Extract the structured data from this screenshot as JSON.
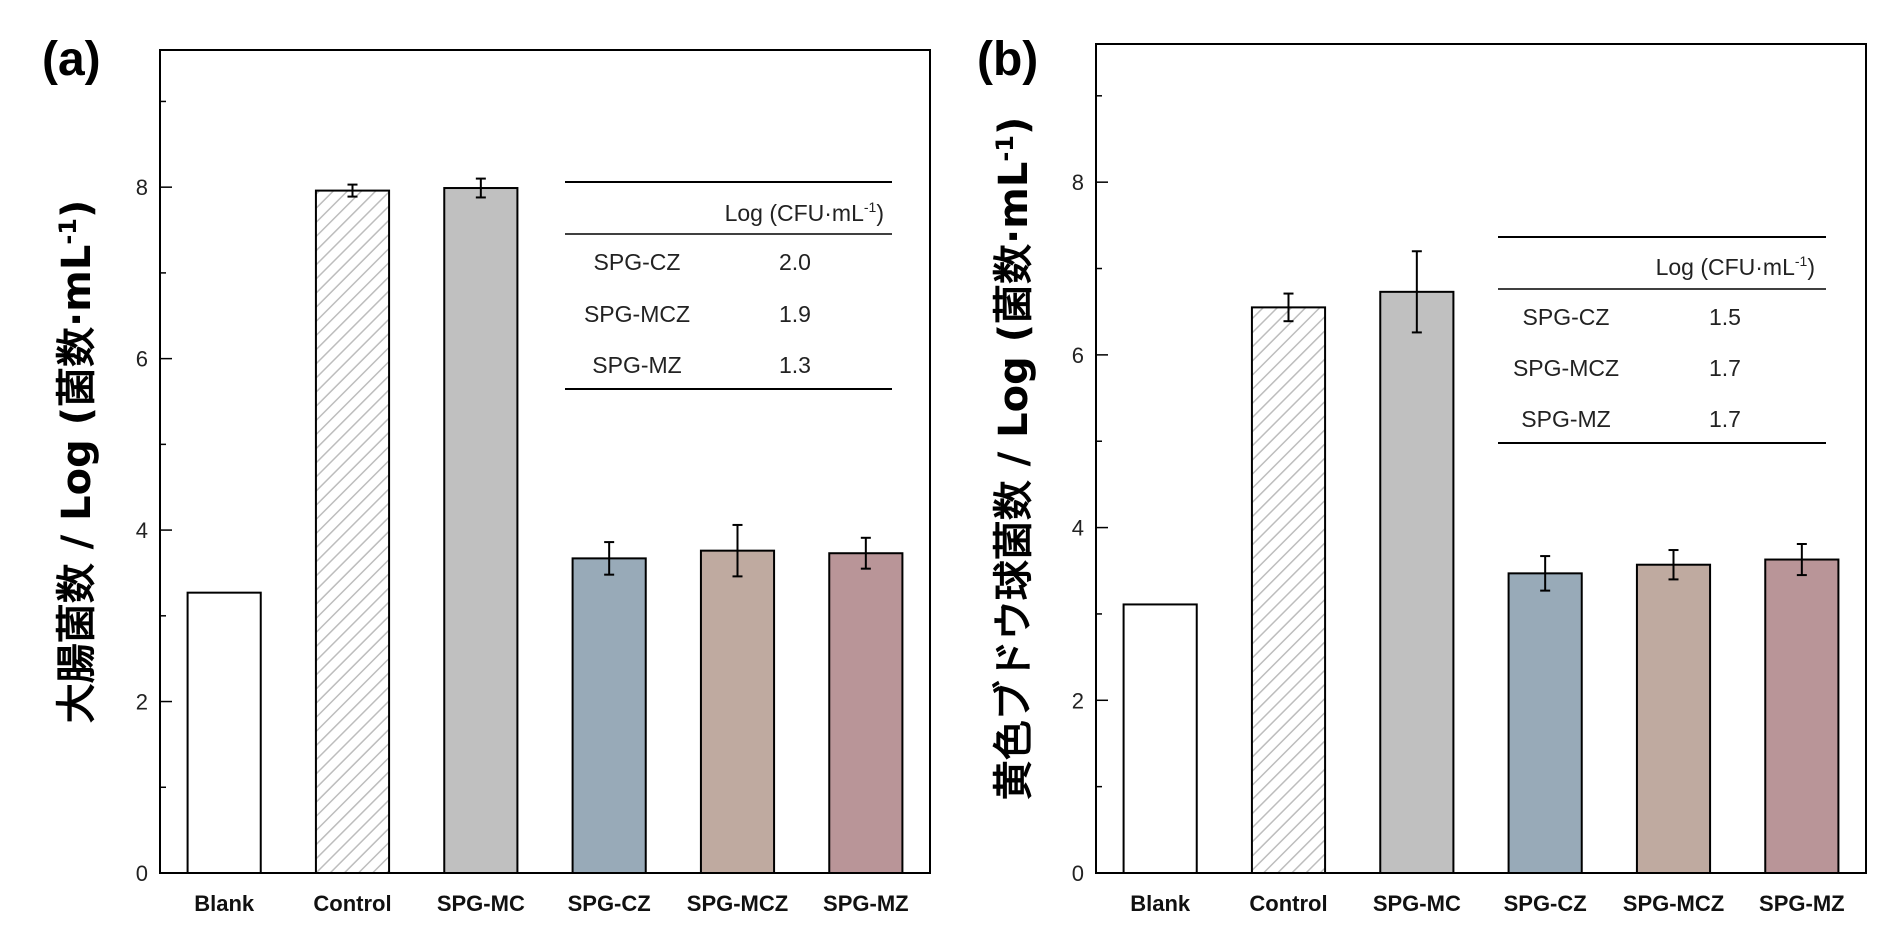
{
  "chart_data": [
    {
      "type": "bar",
      "panel_label": "(a)",
      "ylabel": "大腸菌数 / Log (菌数·mL",
      "ylabel_sup": "-1",
      "ylabel_close": ")",
      "ylim": [
        0,
        9.6
      ],
      "yticks": [
        0,
        2,
        4,
        6,
        8
      ],
      "categories": [
        "Blank",
        "Control",
        "SPG-MC",
        "SPG-CZ",
        "SPG-MCZ",
        "SPG-MZ"
      ],
      "values": [
        3.27,
        7.96,
        7.99,
        3.67,
        3.76,
        3.73
      ],
      "errors": [
        null,
        0.07,
        0.11,
        0.19,
        0.3,
        0.18
      ],
      "bar_fills": [
        "#ffffff",
        "hatch",
        "#c0c0c0",
        "#98aab8",
        "#bfaaa0",
        "#b99598"
      ],
      "grid": false,
      "inset_table": {
        "header": "Log (CFU·mL",
        "header_sup": "-1",
        "header_close": ")",
        "rows": [
          {
            "name": "SPG-CZ",
            "value": "2.0"
          },
          {
            "name": "SPG-MCZ",
            "value": "1.9"
          },
          {
            "name": "SPG-MZ",
            "value": "1.3"
          }
        ],
        "placement": "top-right"
      }
    },
    {
      "type": "bar",
      "panel_label": "(b)",
      "ylabel": "黄色ブドウ球菌数 / Log (菌数·mL",
      "ylabel_sup": "-1",
      "ylabel_close": ")",
      "ylim": [
        0,
        9.6
      ],
      "yticks": [
        0,
        2,
        4,
        6,
        8
      ],
      "categories": [
        "Blank",
        "Control",
        "SPG-MC",
        "SPG-CZ",
        "SPG-MCZ",
        "SPG-MZ"
      ],
      "values": [
        3.11,
        6.55,
        6.73,
        3.47,
        3.57,
        3.63
      ],
      "errors": [
        null,
        0.16,
        0.47,
        0.2,
        0.17,
        0.18
      ],
      "bar_fills": [
        "#ffffff",
        "hatch",
        "#c0c0c0",
        "#98aab8",
        "#bfaaa0",
        "#b99598"
      ],
      "grid": false,
      "inset_table": {
        "header": "Log (CFU·mL",
        "header_sup": "-1",
        "header_close": ")",
        "rows": [
          {
            "name": "SPG-CZ",
            "value": "1.5"
          },
          {
            "name": "SPG-MCZ",
            "value": "1.7"
          },
          {
            "name": "SPG-MZ",
            "value": "1.7"
          }
        ],
        "placement": "top-right"
      }
    }
  ]
}
